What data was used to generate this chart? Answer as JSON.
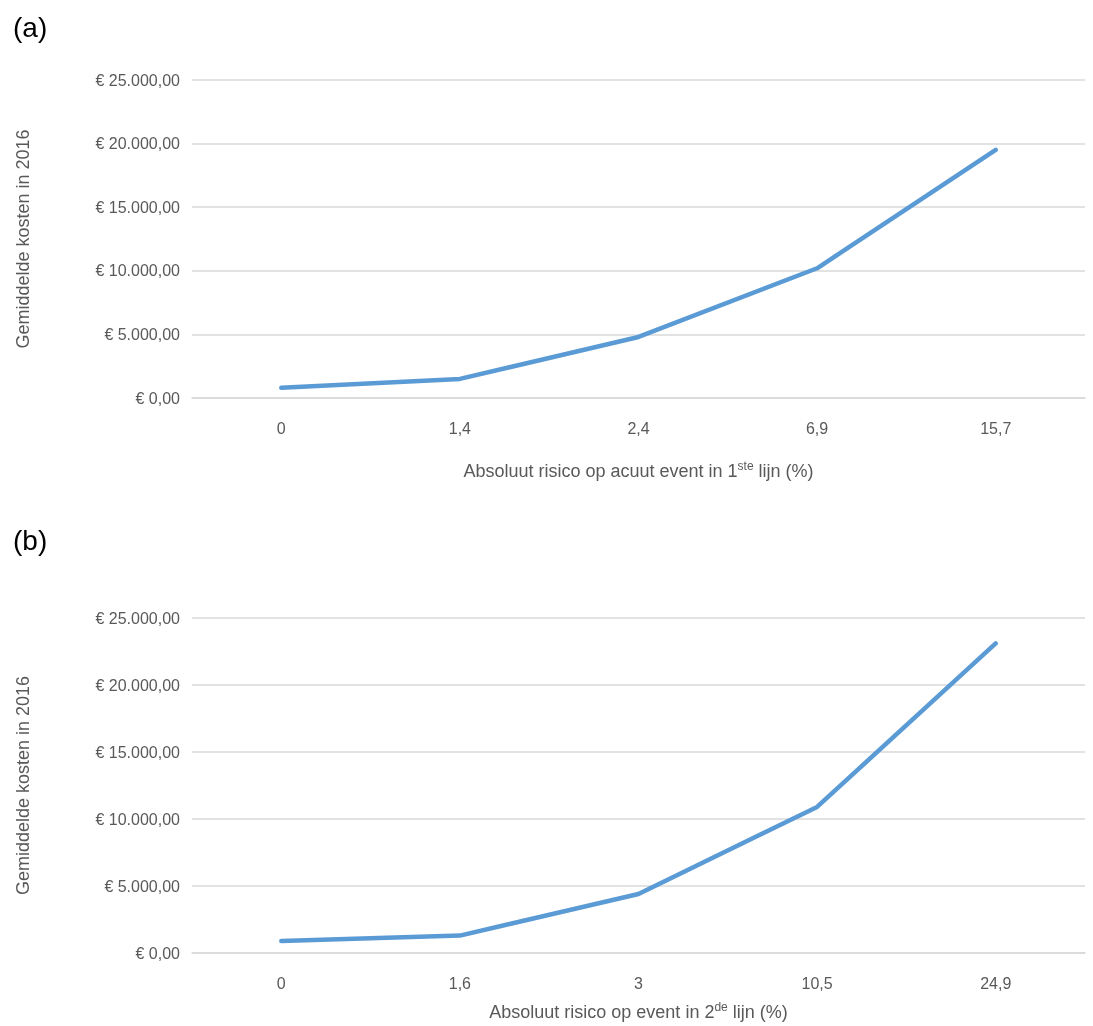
{
  "chart_data": [
    {
      "type": "line",
      "title": "(a)",
      "xlabel": "Absoluut risico op acuut event in 1$^{ste}$ lijn (%)",
      "ylabel": "Gemiddelde kosten in 2016",
      "categories": [
        "0",
        "1,4",
        "2,4",
        "6,9",
        "15,7"
      ],
      "series": [
        {
          "color": "#5b9bd5",
          "values": [
            800,
            1500,
            4800,
            10200,
            19500
          ]
        }
      ],
      "ylim": [
        0,
        25000
      ],
      "yticks": [
        {
          "value": 0,
          "label": "€ 0,00"
        },
        {
          "value": 5000,
          "label": "€ 5.000,00"
        },
        {
          "value": 10000,
          "label": "€ 10.000,00"
        },
        {
          "value": 15000,
          "label": "€ 15.000,00"
        },
        {
          "value": 20000,
          "label": "€ 20.000,00"
        },
        {
          "value": 25000,
          "label": "€ 25.000,00"
        }
      ],
      "grid": "y",
      "marker": "none",
      "line_style": "solid"
    },
    {
      "type": "line",
      "title": "(b)",
      "xlabel": "Absoluut risico op event in 2$^{de}$ lijn (%)",
      "ylabel": "Gemiddelde kosten in 2016",
      "categories": [
        "0",
        "1,6",
        "3",
        "10,5",
        "24,9"
      ],
      "series": [
        {
          "color": "#5b9bd5",
          "values": [
            900,
            1300,
            4400,
            10900,
            23100
          ]
        }
      ],
      "ylim": [
        0,
        25000
      ],
      "yticks": [
        {
          "value": 0,
          "label": "€ 0,00"
        },
        {
          "value": 5000,
          "label": "€ 5.000,00"
        },
        {
          "value": 10000,
          "label": "€ 10.000,00"
        },
        {
          "value": 15000,
          "label": "€ 15.000,00"
        },
        {
          "value": 20000,
          "label": "€ 20.000,00"
        },
        {
          "value": 25000,
          "label": "€ 25.000,00"
        }
      ],
      "grid": "y",
      "marker": "none",
      "line_style": "solid"
    }
  ]
}
